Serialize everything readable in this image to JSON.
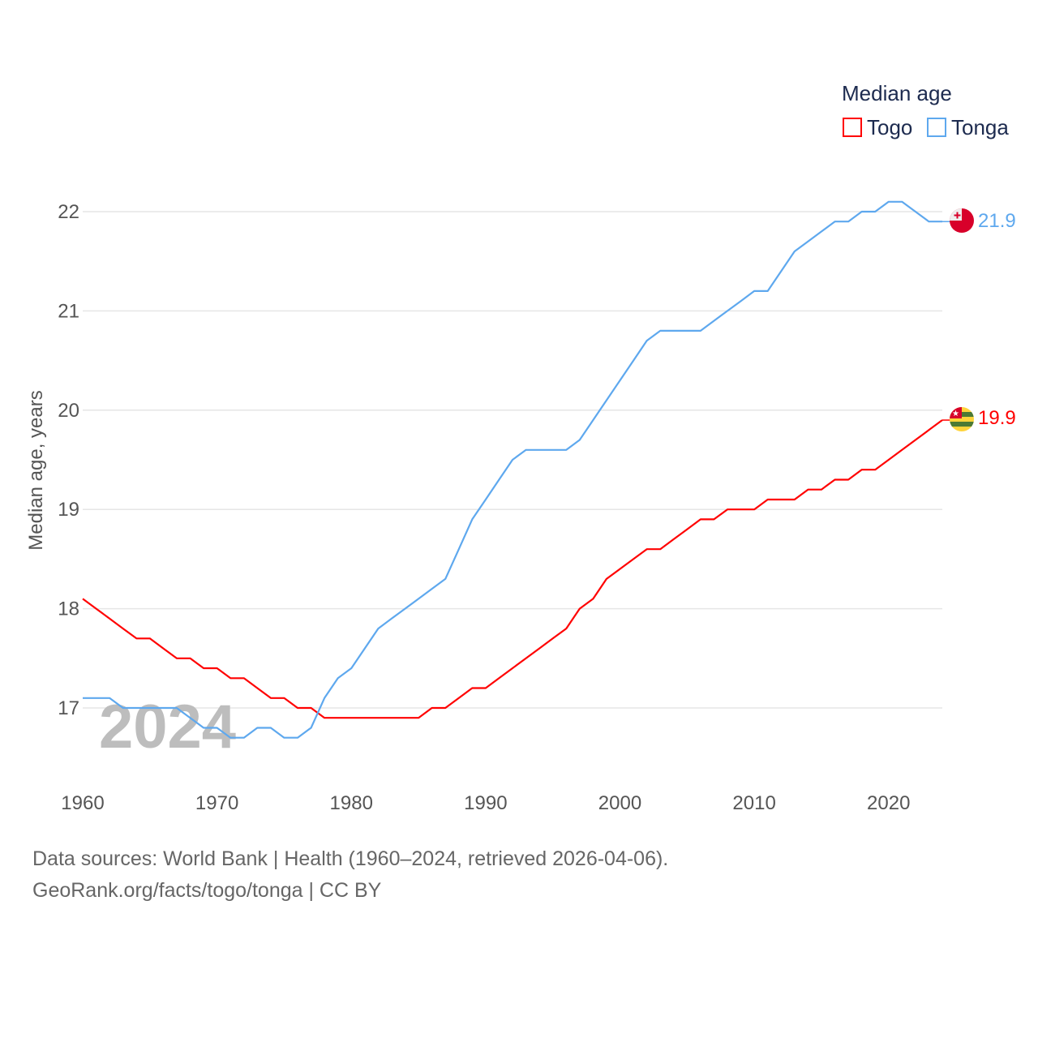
{
  "chart_data": {
    "type": "line",
    "title": "",
    "xlabel": "",
    "ylabel": "Median age, years",
    "xlim": [
      1960,
      2024
    ],
    "ylim": [
      16.3,
      22.3
    ],
    "x_ticks": [
      "1960",
      "1970",
      "1980",
      "1990",
      "2000",
      "2010",
      "2020"
    ],
    "y_ticks": [
      "17",
      "18",
      "19",
      "20",
      "21",
      "22"
    ],
    "grid": true,
    "legend_title": "Median age",
    "legend_position": "top-right",
    "watermark_year": "2024",
    "x": [
      1960,
      1961,
      1962,
      1963,
      1964,
      1965,
      1966,
      1967,
      1968,
      1969,
      1970,
      1971,
      1972,
      1973,
      1974,
      1975,
      1976,
      1977,
      1978,
      1979,
      1980,
      1981,
      1982,
      1983,
      1984,
      1985,
      1986,
      1987,
      1988,
      1989,
      1990,
      1991,
      1992,
      1993,
      1994,
      1995,
      1996,
      1997,
      1998,
      1999,
      2000,
      2001,
      2002,
      2003,
      2004,
      2005,
      2006,
      2007,
      2008,
      2009,
      2010,
      2011,
      2012,
      2013,
      2014,
      2015,
      2016,
      2017,
      2018,
      2019,
      2020,
      2021,
      2022,
      2023,
      2024
    ],
    "series": [
      {
        "name": "Togo",
        "color": "#ff0000",
        "end_label": "19.9",
        "values": [
          18.1,
          18.0,
          17.9,
          17.8,
          17.7,
          17.7,
          17.6,
          17.5,
          17.5,
          17.4,
          17.4,
          17.3,
          17.3,
          17.2,
          17.1,
          17.1,
          17.0,
          17.0,
          16.9,
          16.9,
          16.9,
          16.9,
          16.9,
          16.9,
          16.9,
          16.9,
          17.0,
          17.0,
          17.1,
          17.2,
          17.2,
          17.3,
          17.4,
          17.5,
          17.6,
          17.7,
          17.8,
          18.0,
          18.1,
          18.3,
          18.4,
          18.5,
          18.6,
          18.6,
          18.7,
          18.8,
          18.9,
          18.9,
          19.0,
          19.0,
          19.0,
          19.1,
          19.1,
          19.1,
          19.2,
          19.2,
          19.3,
          19.3,
          19.4,
          19.4,
          19.5,
          19.6,
          19.7,
          19.8,
          19.9
        ]
      },
      {
        "name": "Tonga",
        "color": "#5ea8ee",
        "end_label": "21.9",
        "values": [
          17.1,
          17.1,
          17.1,
          17.0,
          17.0,
          17.0,
          17.0,
          17.0,
          16.9,
          16.8,
          16.8,
          16.7,
          16.7,
          16.8,
          16.8,
          16.7,
          16.7,
          16.8,
          17.1,
          17.3,
          17.4,
          17.6,
          17.8,
          17.9,
          18.0,
          18.1,
          18.2,
          18.3,
          18.6,
          18.9,
          19.1,
          19.3,
          19.5,
          19.6,
          19.6,
          19.6,
          19.6,
          19.7,
          19.9,
          20.1,
          20.3,
          20.5,
          20.7,
          20.8,
          20.8,
          20.8,
          20.8,
          20.9,
          21.0,
          21.1,
          21.2,
          21.2,
          21.4,
          21.6,
          21.7,
          21.8,
          21.9,
          21.9,
          22.0,
          22.0,
          22.1,
          22.1,
          22.0,
          21.9,
          21.9
        ]
      }
    ]
  },
  "footer": {
    "line1": "Data sources: World Bank | Health (1960–2024, retrieved 2026-04-06).",
    "line2": "GeoRank.org/facts/togo/tonga | CC BY"
  }
}
